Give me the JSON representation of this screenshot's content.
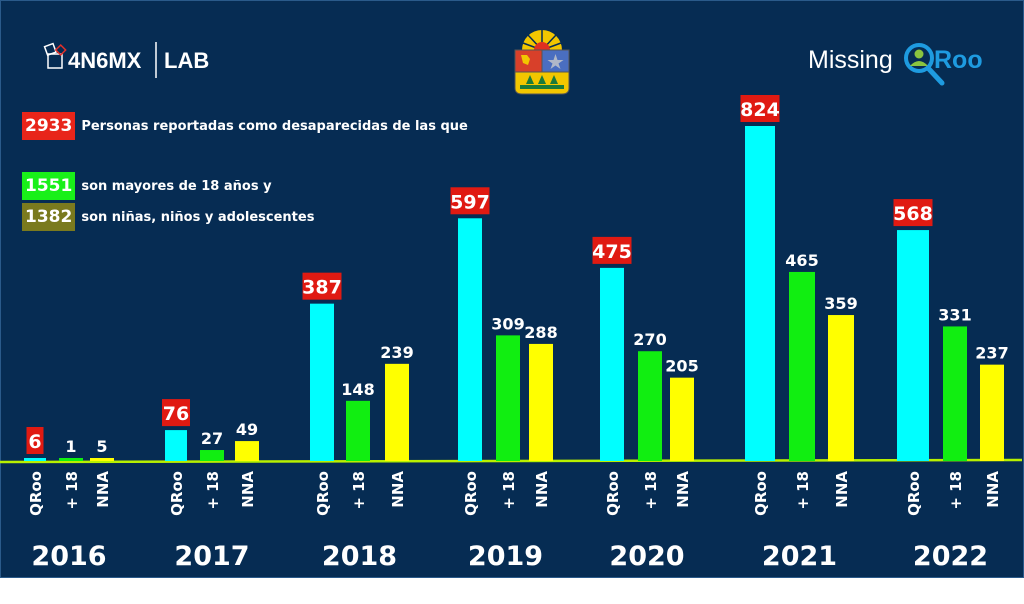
{
  "logos": {
    "left": "4N6MX | LAB",
    "left_part1": "4N6MX",
    "left_part2": "LAB",
    "right_part1": "Missing",
    "right_part2": "Roo",
    "center": "coat-of-arms-icon"
  },
  "legend": [
    {
      "value": "2933",
      "text": "Personas reportadas como desaparecidas de las que",
      "color": "#e8251a"
    },
    {
      "value": "1551",
      "text": "son mayores de 18 años y",
      "color": "#19f019"
    },
    {
      "value": "1382",
      "text": "son niñas, niños y adolescentes",
      "color": "#7a7a1e"
    }
  ],
  "colors": {
    "background": "#062c53",
    "qroo": "#00ffff",
    "mayores": "#11ee11",
    "nna": "#ffff00",
    "label_box": "#e01a12",
    "baseline": "#b8f000"
  },
  "chart_data": {
    "type": "bar",
    "title": "",
    "xlabel": "",
    "ylabel": "",
    "ylim": [
      0,
      824
    ],
    "grid": false,
    "categories": [
      "2016",
      "2017",
      "2018",
      "2019",
      "2020",
      "2021",
      "2022"
    ],
    "sub_categories": [
      "QRoo",
      "+ 18",
      "NNA"
    ],
    "series": [
      {
        "name": "QRoo",
        "values": [
          6,
          76,
          387,
          597,
          475,
          824,
          568
        ]
      },
      {
        "name": "+ 18",
        "values": [
          1,
          27,
          148,
          309,
          270,
          465,
          331
        ]
      },
      {
        "name": "NNA",
        "values": [
          5,
          49,
          239,
          288,
          205,
          359,
          237
        ]
      }
    ]
  }
}
